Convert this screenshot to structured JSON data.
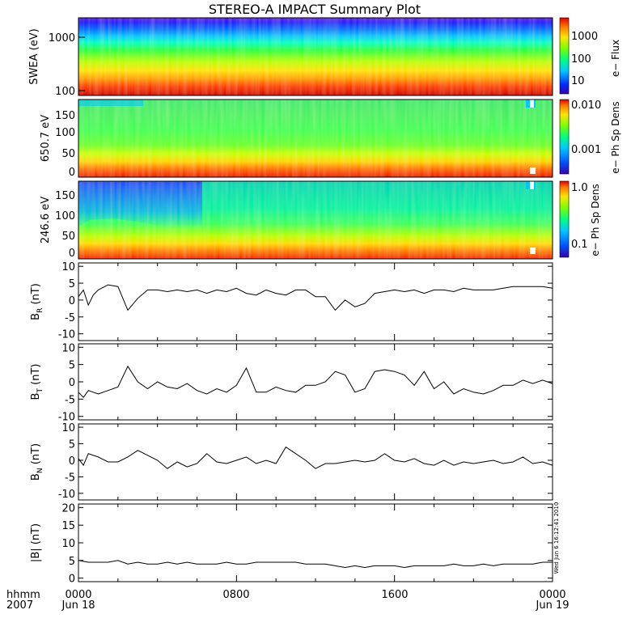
{
  "title": "STEREO-A IMPACT Summary Plot",
  "footer": {
    "row1_left": "hhmm",
    "row2_left": "2007",
    "tick_times": [
      "0000",
      "0800",
      "1600",
      "0000"
    ],
    "date_start": "Jun 18",
    "date_end": "Jun 19",
    "stamp": "Wed Jun  6 16:12:41 2010"
  },
  "colors": {
    "axes": "#000000",
    "trace": "#000000",
    "colormap": [
      "#3b00a8",
      "#0028ff",
      "#00c8ff",
      "#00ff80",
      "#7cff00",
      "#ffe400",
      "#ff7a00",
      "#e00000"
    ]
  },
  "chart_data": [
    {
      "type": "heatmap",
      "name": "swea",
      "ylabel": "SWEA (eV)",
      "y_ticks": [
        "1000",
        "100"
      ],
      "colorbar_label": "e− Flux",
      "colorbar_ticks": [
        "1000",
        "100",
        "10"
      ],
      "y_scale": "log"
    },
    {
      "type": "heatmap",
      "name": "pad650",
      "ylabel": "650.7 eV",
      "y_ticks": [
        "150",
        "100",
        "50",
        "0"
      ],
      "ylim": [
        0,
        180
      ],
      "colorbar_label": "e− Ph Sp Dens",
      "colorbar_ticks": [
        "0.010",
        "0.001"
      ]
    },
    {
      "type": "heatmap",
      "name": "pad246",
      "ylabel": "246.6 eV",
      "y_ticks": [
        "150",
        "100",
        "50",
        "0"
      ],
      "ylim": [
        0,
        180
      ],
      "colorbar_label": "e− Ph Sp Dens",
      "colorbar_ticks": [
        "1.0",
        "0.1"
      ]
    },
    {
      "type": "line",
      "name": "BR",
      "ylabel_main": "B",
      "ylabel_sub": "R",
      "ylabel_unit": " (nT)",
      "ylim": [
        -12,
        11
      ],
      "y_ticks": [
        10,
        5,
        0,
        -5,
        -10
      ],
      "x_hours": [
        0,
        0.25,
        0.5,
        0.75,
        1,
        1.5,
        2,
        2.5,
        3,
        3.5,
        4,
        4.5,
        5,
        5.5,
        6,
        6.5,
        7,
        7.5,
        8,
        8.5,
        9,
        9.5,
        10,
        10.5,
        11,
        11.5,
        12,
        12.5,
        13,
        13.5,
        14,
        14.5,
        15,
        15.5,
        16,
        16.5,
        17,
        17.5,
        18,
        18.5,
        19,
        19.5,
        20,
        20.5,
        21,
        21.5,
        22,
        22.5,
        23,
        23.5,
        24
      ],
      "values": [
        1,
        3,
        -1.5,
        1.5,
        3,
        4.5,
        4,
        -3,
        0.5,
        3,
        3,
        2.5,
        3,
        2.5,
        3,
        2,
        3,
        2.5,
        3.5,
        2,
        1.5,
        3,
        2,
        1.5,
        3,
        3,
        1,
        1,
        -3,
        0,
        -2,
        -1,
        2,
        2.5,
        3,
        2.5,
        3,
        2,
        3,
        3,
        2.5,
        3.5,
        3,
        3,
        3,
        3.5,
        4,
        4,
        4,
        4,
        3.5
      ]
    },
    {
      "type": "line",
      "name": "BT",
      "ylabel_main": "B",
      "ylabel_sub": "T",
      "ylabel_unit": " (nT)",
      "ylim": [
        -11,
        11
      ],
      "y_ticks": [
        10,
        5,
        0,
        -5,
        -10
      ],
      "x_hours": [
        0,
        0.25,
        0.5,
        1,
        1.5,
        2,
        2.5,
        3,
        3.5,
        4,
        4.5,
        5,
        5.5,
        6,
        6.5,
        7,
        7.5,
        8,
        8.5,
        9,
        9.5,
        10,
        10.5,
        11,
        11.5,
        12,
        12.5,
        13,
        13.5,
        14,
        14.5,
        15,
        15.5,
        16,
        16.5,
        17,
        17.5,
        18,
        18.5,
        19,
        19.5,
        20,
        20.5,
        21,
        21.5,
        22,
        22.5,
        23,
        23.5,
        24
      ],
      "values": [
        -3,
        -4.5,
        -2.5,
        -3.5,
        -2.5,
        -1.5,
        4.5,
        0,
        -2,
        0,
        -1.5,
        -2,
        -0.5,
        -2.5,
        -3.5,
        -2,
        -3,
        -1,
        4,
        -3,
        -3,
        -1.5,
        -2.5,
        -3,
        -1,
        -1,
        0,
        3,
        2,
        -3,
        -2,
        3,
        3.5,
        3,
        2,
        -1,
        3,
        -2,
        0,
        -3.5,
        -2,
        -3,
        -3.5,
        -2.5,
        -1,
        -1,
        0.5,
        -0.5,
        0.5,
        -0.5
      ]
    },
    {
      "type": "line",
      "name": "BN",
      "ylabel_main": "B",
      "ylabel_sub": "N",
      "ylabel_unit": " (nT)",
      "ylim": [
        -12,
        11
      ],
      "y_ticks": [
        10,
        5,
        0,
        -5,
        -10
      ],
      "x_hours": [
        0,
        0.25,
        0.5,
        1,
        1.5,
        2,
        2.5,
        3,
        3.5,
        4,
        4.5,
        5,
        5.5,
        6,
        6.5,
        7,
        7.5,
        8,
        8.5,
        9,
        9.5,
        10,
        10.5,
        11,
        11.5,
        12,
        12.5,
        13,
        13.5,
        14,
        14.5,
        15,
        15.5,
        16,
        16.5,
        17,
        17.5,
        18,
        18.5,
        19,
        19.5,
        20,
        20.5,
        21,
        21.5,
        22,
        22.5,
        23,
        23.5,
        24
      ],
      "values": [
        0.5,
        -1.5,
        2,
        1,
        -0.5,
        -0.5,
        1,
        3,
        1.5,
        0,
        -2.5,
        -0.5,
        -2,
        -1,
        2,
        -0.5,
        -1,
        0,
        1,
        -1,
        0,
        -1,
        4,
        2,
        0,
        -2.5,
        -1,
        -1,
        -0.5,
        0,
        -0.5,
        0,
        2,
        0,
        -0.5,
        0.5,
        -1,
        -1.5,
        0,
        -1.5,
        -0.5,
        -1,
        -0.5,
        0,
        -1,
        -0.5,
        1,
        -1,
        -0.5,
        -1.5
      ]
    },
    {
      "type": "line",
      "name": "Bmag",
      "ylabel_main": "|B| (nT)",
      "ylim": [
        -1,
        21
      ],
      "y_ticks": [
        20,
        15,
        10,
        5,
        0
      ],
      "x_hours": [
        0,
        0.5,
        1,
        1.5,
        2,
        2.5,
        3,
        3.5,
        4,
        4.5,
        5,
        5.5,
        6,
        6.5,
        7,
        7.5,
        8,
        8.5,
        9,
        9.5,
        10,
        10.5,
        11,
        11.5,
        12,
        12.5,
        13,
        13.5,
        14,
        14.5,
        15,
        15.5,
        16,
        16.5,
        17,
        17.5,
        18,
        18.5,
        19,
        19.5,
        20,
        20.5,
        21,
        21.5,
        22,
        22.5,
        23,
        23.5,
        24
      ],
      "values": [
        5,
        4.5,
        4.5,
        4.5,
        5,
        4,
        4.5,
        4,
        4,
        4.5,
        4,
        4.5,
        4,
        4,
        4,
        4.5,
        4,
        4,
        4.5,
        4.5,
        4.5,
        4.5,
        4.5,
        4,
        4,
        4,
        3.5,
        3,
        3.5,
        3,
        3.5,
        3.5,
        3.5,
        3,
        3.5,
        3.5,
        3.5,
        3.5,
        4,
        3.5,
        3.5,
        4,
        3.5,
        4,
        4,
        4,
        4,
        4.5,
        4.5
      ]
    }
  ]
}
